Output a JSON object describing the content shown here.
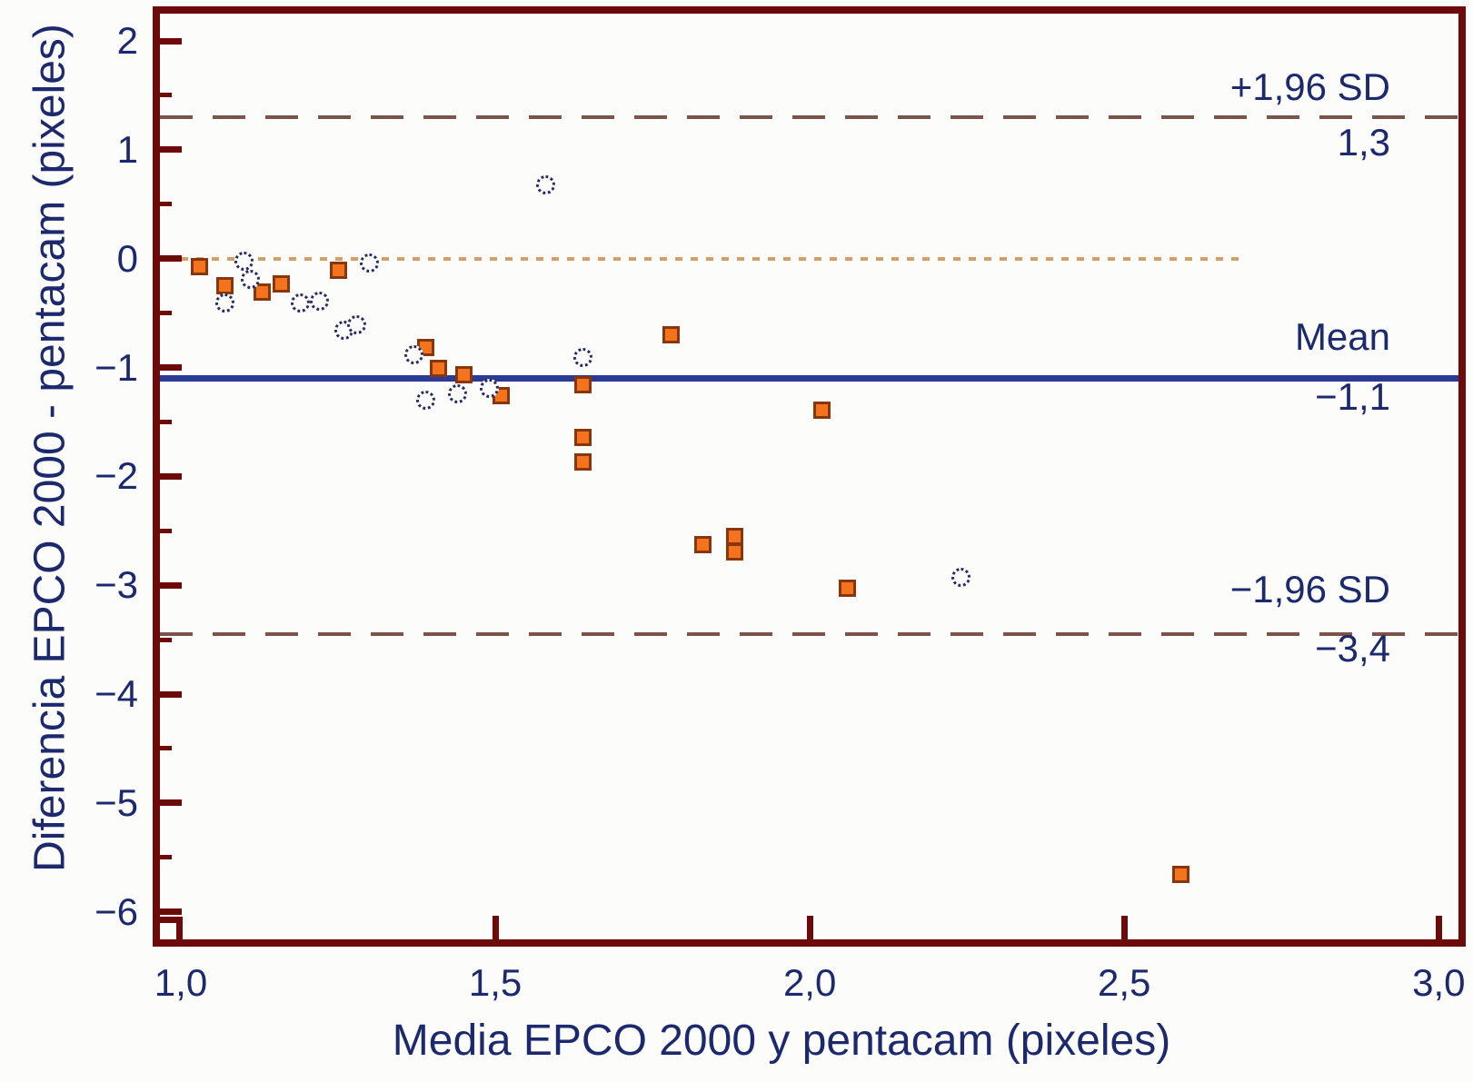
{
  "colors": {
    "axis_frame": "#6d0b0b",
    "text_navy": "#1c2a6d",
    "mean_line": "#2b3a94",
    "sd_dashed_line": "#7d524b",
    "zero_dotted_line": "#d0a068",
    "square_fill": "#f4731d",
    "square_border": "#87360f",
    "circle_border": "#272c60",
    "background": "#fcfcfb"
  },
  "chart_data": {
    "type": "scatter",
    "title": "",
    "xlabel": "Media EPCO 2000 y pentacam (pixeles)",
    "ylabel": "Diferencia EPCO 2000 - pentacam (pixeles)",
    "xlim": [
      1.0,
      3.0
    ],
    "ylim": [
      -6.5,
      2.3
    ],
    "grid": false,
    "legend": "none",
    "x_ticks": {
      "values": [
        1.0,
        1.5,
        2.0,
        2.5,
        3.0
      ],
      "labels": [
        "1,0",
        "1,5",
        "2,0",
        "2,5",
        "3,0"
      ]
    },
    "y_ticks": {
      "values": [
        2,
        1,
        0,
        -1,
        -2,
        -3,
        -4,
        -5,
        -6
      ],
      "labels": [
        "2",
        "1",
        "0",
        "−1",
        "−2",
        "−3",
        "−4",
        "−5",
        "−6"
      ]
    },
    "y_minor_ticks": [
      1.5,
      0.5,
      -0.5,
      -1.5,
      -2.5,
      -3.5,
      -4.5,
      -5.5
    ],
    "reference_lines": [
      {
        "name": "upper-limit-of-agreement",
        "y": 1.3,
        "style": "dashed",
        "label": "+1,96 SD",
        "value_label": "1,3"
      },
      {
        "name": "mean-difference",
        "y": -1.1,
        "style": "solid",
        "label": "Mean",
        "value_label": "−1,1"
      },
      {
        "name": "lower-limit-of-agreement",
        "y": -3.45,
        "style": "dashed",
        "label": "−1,96 SD",
        "value_label": "−3,4"
      },
      {
        "name": "zero-line",
        "y": 0,
        "style": "dotted",
        "x_start": 1.0,
        "x_end": 2.69
      }
    ],
    "series": [
      {
        "name": "orange-squares",
        "marker": "filled-square",
        "points": [
          [
            1.03,
            -0.07
          ],
          [
            1.07,
            -0.25
          ],
          [
            1.13,
            -0.31
          ],
          [
            1.16,
            -0.23
          ],
          [
            1.25,
            -0.11
          ],
          [
            1.39,
            -0.82
          ],
          [
            1.41,
            -1.01
          ],
          [
            1.45,
            -1.07
          ],
          [
            1.51,
            -1.26
          ],
          [
            1.64,
            -1.16
          ],
          [
            1.64,
            -1.64
          ],
          [
            1.64,
            -1.87
          ],
          [
            1.78,
            -0.7
          ],
          [
            1.83,
            -2.63
          ],
          [
            1.88,
            -2.55
          ],
          [
            1.88,
            -2.69
          ],
          [
            2.02,
            -1.39
          ],
          [
            2.06,
            -3.03
          ],
          [
            2.59,
            -5.66
          ]
        ]
      },
      {
        "name": "open-circles",
        "marker": "open-circle",
        "points": [
          [
            1.1,
            -0.02
          ],
          [
            1.11,
            -0.19
          ],
          [
            1.07,
            -0.41
          ],
          [
            1.19,
            -0.41
          ],
          [
            1.22,
            -0.39
          ],
          [
            1.26,
            -0.66
          ],
          [
            1.28,
            -0.61
          ],
          [
            1.3,
            -0.04
          ],
          [
            1.37,
            -0.88
          ],
          [
            1.39,
            -1.3
          ],
          [
            1.44,
            -1.24
          ],
          [
            1.49,
            -1.19
          ],
          [
            1.58,
            0.68
          ],
          [
            1.64,
            -0.91
          ],
          [
            2.24,
            -2.93
          ]
        ]
      }
    ]
  }
}
